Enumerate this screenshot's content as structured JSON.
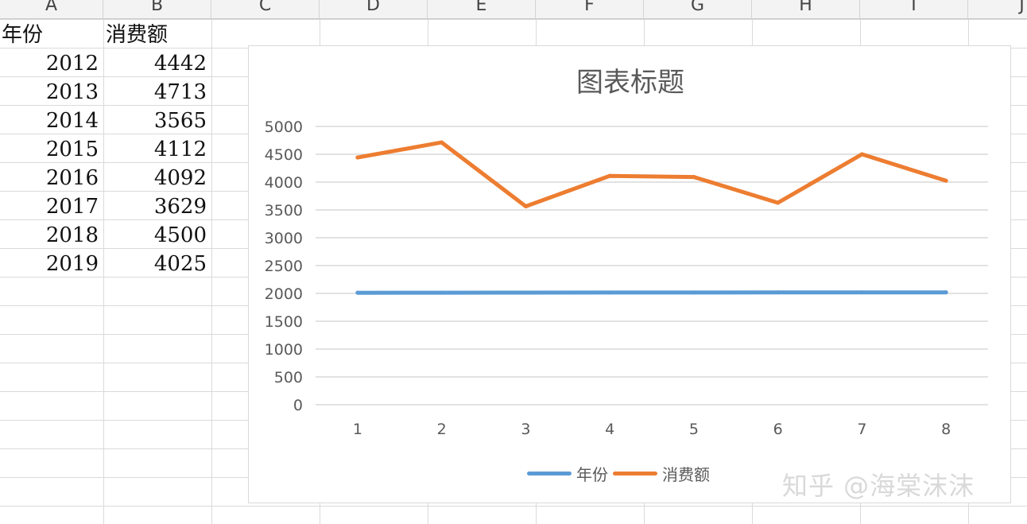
{
  "spreadsheet": {
    "columns": [
      "A",
      "B",
      "C",
      "D",
      "E",
      "F",
      "G",
      "H",
      "I",
      "J"
    ],
    "headers": {
      "col_a": "年份",
      "col_b": "消费额"
    },
    "rows": [
      {
        "year": "2012",
        "amount": "4442"
      },
      {
        "year": "2013",
        "amount": "4713"
      },
      {
        "year": "2014",
        "amount": "3565"
      },
      {
        "year": "2015",
        "amount": "4112"
      },
      {
        "year": "2016",
        "amount": "4092"
      },
      {
        "year": "2017",
        "amount": "3629"
      },
      {
        "year": "2018",
        "amount": "4500"
      },
      {
        "year": "2019",
        "amount": "4025"
      }
    ]
  },
  "chart_data": {
    "type": "line",
    "title": "图表标题",
    "x": [
      1,
      2,
      3,
      4,
      5,
      6,
      7,
      8
    ],
    "categories": [
      "1",
      "2",
      "3",
      "4",
      "5",
      "6",
      "7",
      "8"
    ],
    "series": [
      {
        "name": "年份",
        "color": "#5b9bd5",
        "values": [
          2012,
          2013,
          2014,
          2015,
          2016,
          2017,
          2018,
          2019
        ]
      },
      {
        "name": "消费额",
        "color": "#ed7d31",
        "values": [
          4442,
          4713,
          3565,
          4112,
          4092,
          3629,
          4500,
          4025
        ]
      }
    ],
    "ylim": [
      0,
      5000
    ],
    "yticks": [
      0,
      500,
      1000,
      1500,
      2000,
      2500,
      3000,
      3500,
      4000,
      4500,
      5000
    ],
    "grid": true,
    "legend_position": "bottom"
  },
  "watermark": {
    "text": "知乎 @海棠沫沫"
  }
}
